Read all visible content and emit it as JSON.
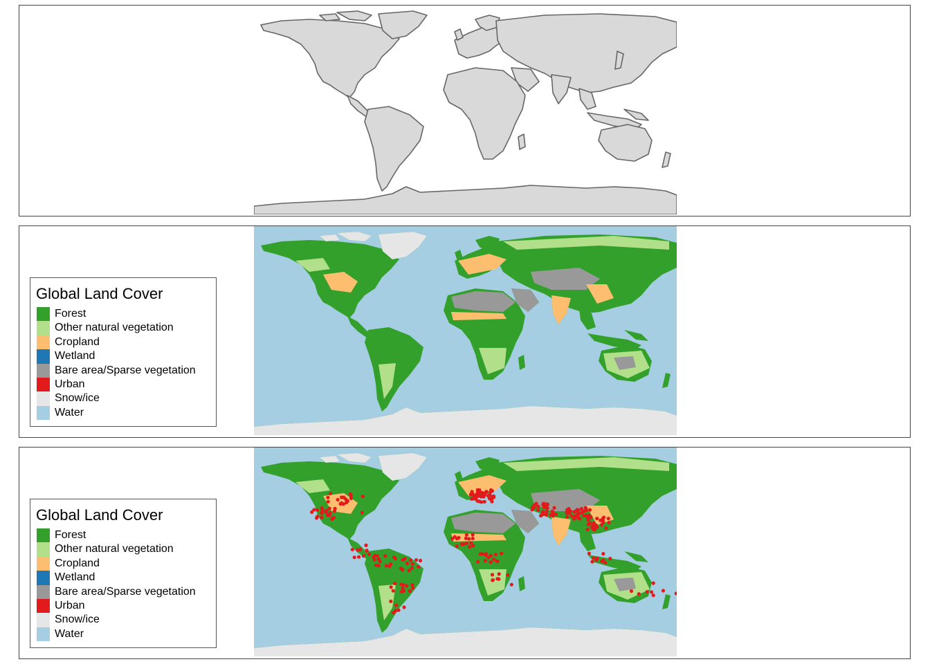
{
  "legend": {
    "title": "Global Land Cover",
    "items": [
      {
        "label": "Forest",
        "color": "#33a02c"
      },
      {
        "label": "Other natural vegetation",
        "color": "#b2df8a"
      },
      {
        "label": "Cropland",
        "color": "#fdbf6f"
      },
      {
        "label": "Wetland",
        "color": "#1f78b4"
      },
      {
        "label": "Bare area/Sparse vegetation",
        "color": "#999999"
      },
      {
        "label": "Urban",
        "color": "#e31a1c"
      },
      {
        "label": "Snow/ice",
        "color": "#e6e6e6"
      },
      {
        "label": "Water",
        "color": "#a6cee3"
      }
    ]
  },
  "colors": {
    "land_fill": "#d9d9d9",
    "border": "#666666",
    "urban_points": "#e31a1c"
  }
}
